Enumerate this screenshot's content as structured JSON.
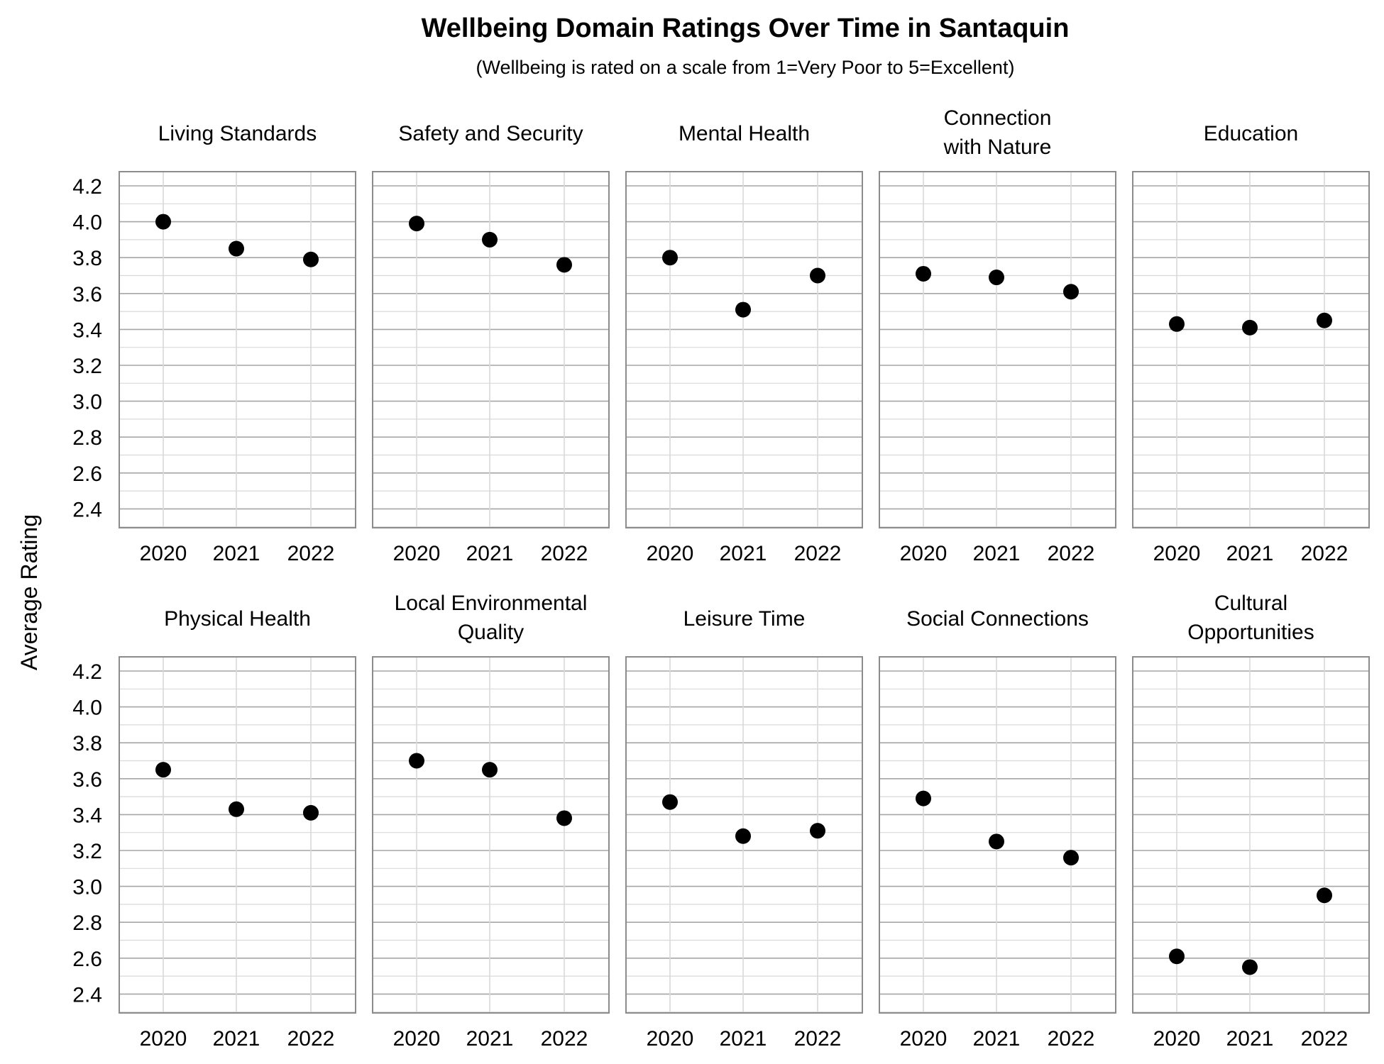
{
  "chart_data": {
    "type": "scatter",
    "title": "Wellbeing Domain Ratings Over Time in Santaquin",
    "subtitle": "(Wellbeing is rated on a scale from 1=Very Poor to 5=Excellent)",
    "ylabel": "Average Rating",
    "ylim": [
      2.3,
      4.3
    ],
    "yticks": [
      "4.2",
      "4.0",
      "3.8",
      "3.6",
      "3.4",
      "3.2",
      "3.0",
      "2.8",
      "2.6",
      "2.4"
    ],
    "x": [
      "2020",
      "2021",
      "2022"
    ],
    "grid": true,
    "panels": [
      {
        "title": [
          "Living Standards"
        ],
        "values": [
          4.0,
          3.85,
          3.79
        ]
      },
      {
        "title": [
          "Safety and Security"
        ],
        "values": [
          3.99,
          3.9,
          3.76
        ]
      },
      {
        "title": [
          "Mental Health"
        ],
        "values": [
          3.8,
          3.51,
          3.7
        ]
      },
      {
        "title": [
          "Connection",
          "with Nature"
        ],
        "values": [
          3.71,
          3.69,
          3.61
        ]
      },
      {
        "title": [
          "Education"
        ],
        "values": [
          3.43,
          3.41,
          3.45
        ]
      },
      {
        "title": [
          "Physical Health"
        ],
        "values": [
          3.65,
          3.43,
          3.41
        ]
      },
      {
        "title": [
          "Local Environmental",
          "Quality"
        ],
        "values": [
          3.7,
          3.65,
          3.38
        ]
      },
      {
        "title": [
          "Leisure Time"
        ],
        "values": [
          3.47,
          3.28,
          3.31
        ]
      },
      {
        "title": [
          "Social Connections"
        ],
        "values": [
          3.49,
          3.25,
          3.16
        ]
      },
      {
        "title": [
          "Cultural",
          "Opportunities"
        ],
        "values": [
          2.61,
          2.55,
          2.95
        ]
      }
    ]
  }
}
